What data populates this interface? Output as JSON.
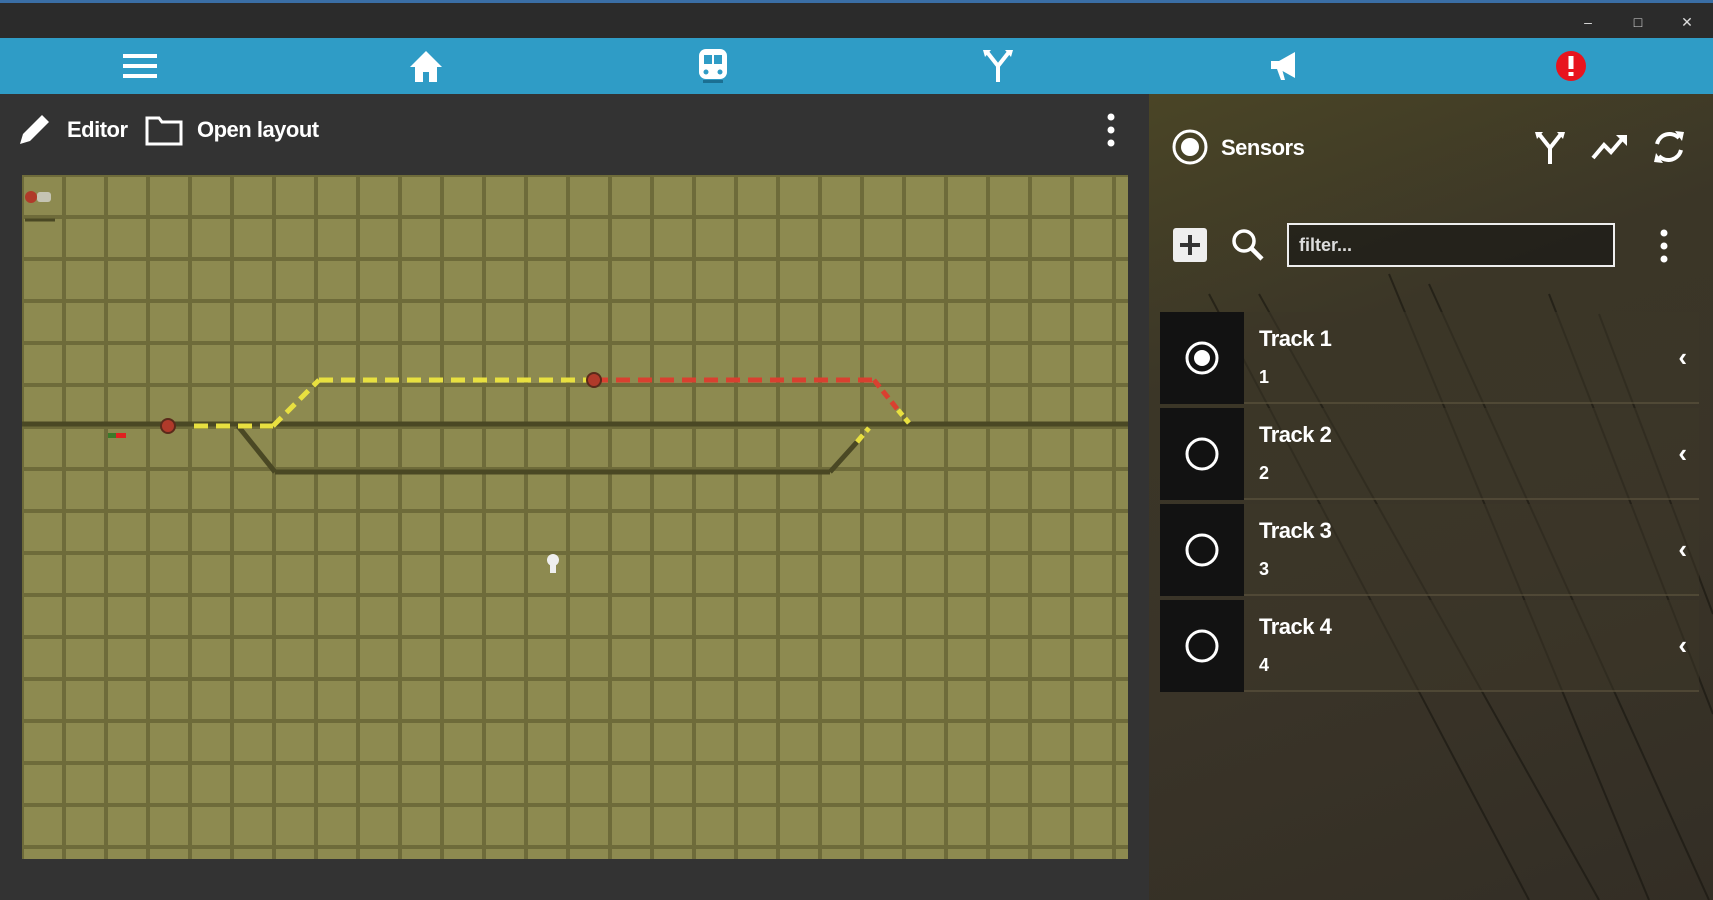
{
  "window": {
    "minimize": "–",
    "maximize": "□",
    "close": "✕"
  },
  "nav": {
    "items": [
      "menu-icon",
      "home-icon",
      "train-icon",
      "turnout-icon",
      "announcement-icon",
      "alert-icon"
    ],
    "accent": "#2f9cc6",
    "alert_color": "#e8141e"
  },
  "editor": {
    "editor_label": "Editor",
    "open_layout_label": "Open layout"
  },
  "sensors": {
    "title": "Sensors",
    "filter_placeholder": "filter...",
    "items": [
      {
        "name": "Track 1",
        "id": "1",
        "active": true
      },
      {
        "name": "Track 2",
        "id": "2",
        "active": false
      },
      {
        "name": "Track 3",
        "id": "3",
        "active": false
      },
      {
        "name": "Track 4",
        "id": "4",
        "active": false
      }
    ]
  },
  "layout": {
    "colors": {
      "tile": "#8d8a50",
      "track": "#4a4824",
      "route_yellow": "#e8e040",
      "route_red": "#d94030",
      "sensor": "#b03a2a"
    }
  }
}
